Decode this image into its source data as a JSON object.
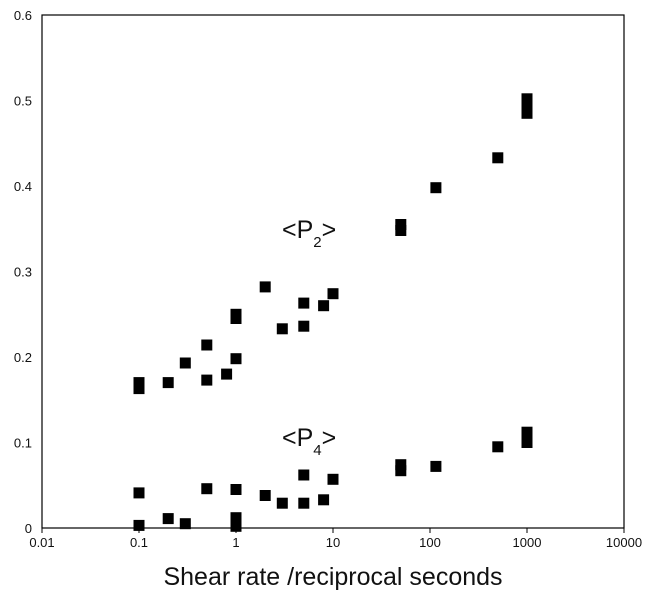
{
  "chart_data": {
    "type": "scatter",
    "title": "",
    "xlabel": "Shear rate /reciprocal seconds",
    "ylabel": "",
    "x_scale": "log",
    "xlim": [
      0.01,
      10000
    ],
    "ylim": [
      0,
      0.6
    ],
    "x_ticks": [
      "0.01",
      "0.1",
      "1",
      "10",
      "100",
      "1000",
      "10000"
    ],
    "y_ticks": [
      "0",
      "0.1",
      "0.2",
      "0.3",
      "0.4",
      "0.5",
      "0.6"
    ],
    "grid": false,
    "marker": "square",
    "marker_color": "#000000",
    "series": [
      {
        "label": "<P2>",
        "label_main": "<P",
        "label_sub": "2",
        "label_end": ">",
        "points": [
          [
            0.1,
            0.17
          ],
          [
            0.1,
            0.163
          ],
          [
            0.2,
            0.17
          ],
          [
            0.3,
            0.193
          ],
          [
            0.5,
            0.214
          ],
          [
            0.5,
            0.173
          ],
          [
            0.8,
            0.18
          ],
          [
            1,
            0.25
          ],
          [
            1,
            0.245
          ],
          [
            1,
            0.198
          ],
          [
            2,
            0.282
          ],
          [
            3,
            0.233
          ],
          [
            5,
            0.263
          ],
          [
            5,
            0.236
          ],
          [
            8,
            0.26
          ],
          [
            10,
            0.274
          ],
          [
            50,
            0.355
          ],
          [
            50,
            0.348
          ],
          [
            115,
            0.398
          ],
          [
            500,
            0.433
          ],
          [
            1000,
            0.502
          ],
          [
            1000,
            0.493
          ],
          [
            1000,
            0.485
          ]
        ]
      },
      {
        "label": "<P4>",
        "label_main": "<P",
        "label_sub": "4",
        "label_end": ">",
        "points": [
          [
            0.1,
            0.041
          ],
          [
            0.1,
            0.003
          ],
          [
            0.2,
            0.011
          ],
          [
            0.3,
            0.005
          ],
          [
            0.5,
            0.046
          ],
          [
            1,
            0.045
          ],
          [
            1,
            0.012
          ],
          [
            1,
            0.006
          ],
          [
            1,
            0.002
          ],
          [
            2,
            0.038
          ],
          [
            3,
            0.029
          ],
          [
            5,
            0.062
          ],
          [
            5,
            0.029
          ],
          [
            8,
            0.033
          ],
          [
            10,
            0.057
          ],
          [
            50,
            0.074
          ],
          [
            50,
            0.067
          ],
          [
            115,
            0.072
          ],
          [
            500,
            0.095
          ],
          [
            1000,
            0.112
          ],
          [
            1000,
            0.106
          ],
          [
            1000,
            0.1
          ]
        ]
      }
    ]
  }
}
